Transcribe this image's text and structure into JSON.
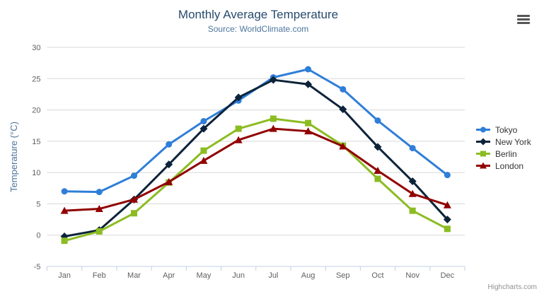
{
  "header": {
    "title": "Monthly Average Temperature",
    "subtitle": "Source: WorldClimate.com"
  },
  "export_menu": {
    "icon": "hamburger-icon"
  },
  "credits": {
    "label": "Highcharts.com"
  },
  "theme": {
    "title_color": "#274b6d",
    "subtitle_color": "#4d759e",
    "axis_label_color": "#606060",
    "axis_title_color": "#4d759e",
    "grid_color": "#d8d8d8",
    "axis_line_color": "#c0d0e0",
    "legend_text_color": "#333333",
    "credits_color": "#909090",
    "background": "#ffffff"
  },
  "chart_data": {
    "type": "line",
    "title": "Monthly Average Temperature",
    "subtitle": "Source: WorldClimate.com",
    "categories": [
      "Jan",
      "Feb",
      "Mar",
      "Apr",
      "May",
      "Jun",
      "Jul",
      "Aug",
      "Sep",
      "Oct",
      "Nov",
      "Dec"
    ],
    "series": [
      {
        "name": "Tokyo",
        "color": "#2f7ed8",
        "marker": "circle",
        "values": [
          7.0,
          6.9,
          9.5,
          14.5,
          18.2,
          21.5,
          25.2,
          26.5,
          23.3,
          18.3,
          13.9,
          9.6
        ]
      },
      {
        "name": "New York",
        "color": "#0d233a",
        "marker": "diamond",
        "values": [
          -0.2,
          0.8,
          5.7,
          11.3,
          17.0,
          22.0,
          24.8,
          24.1,
          20.1,
          14.1,
          8.6,
          2.5
        ]
      },
      {
        "name": "Berlin",
        "color": "#8bbc21",
        "marker": "square",
        "values": [
          -0.9,
          0.6,
          3.5,
          8.4,
          13.5,
          17.0,
          18.6,
          17.9,
          14.3,
          9.0,
          3.9,
          1.0
        ]
      },
      {
        "name": "London",
        "color": "#910000",
        "marker": "triangle",
        "values": [
          3.9,
          4.2,
          5.7,
          8.5,
          11.9,
          15.2,
          17.0,
          16.6,
          14.2,
          10.3,
          6.6,
          4.8
        ]
      }
    ],
    "xlabel": "",
    "ylabel": "Temperature (°C)",
    "ylim": [
      -5,
      30
    ],
    "ytick_interval": 5,
    "grid": true,
    "legend_position": "right"
  }
}
